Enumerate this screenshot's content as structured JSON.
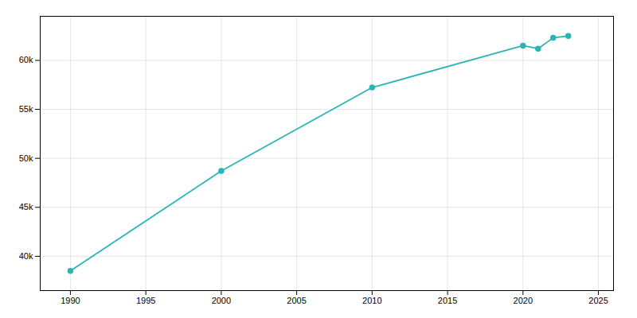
{
  "chart_data": {
    "type": "line",
    "x": [
      1990,
      2000,
      2010,
      2020,
      2021,
      2022,
      2023
    ],
    "values": [
      38500,
      48715,
      57233,
      61500,
      61200,
      62300,
      62500
    ],
    "color": "#2AB5B5",
    "marker": "circle",
    "xlim": [
      1988,
      2026
    ],
    "xticks": [
      1990,
      1995,
      2000,
      2005,
      2010,
      2015,
      2020,
      2025
    ],
    "ylim": [
      36500,
      64500
    ],
    "yticks": [
      {
        "value": 40000,
        "label": "40k"
      },
      {
        "value": 45000,
        "label": "45k"
      },
      {
        "value": 50000,
        "label": "50k"
      },
      {
        "value": 55000,
        "label": "55k"
      },
      {
        "value": 60000,
        "label": "60k"
      }
    ],
    "grid": true
  }
}
